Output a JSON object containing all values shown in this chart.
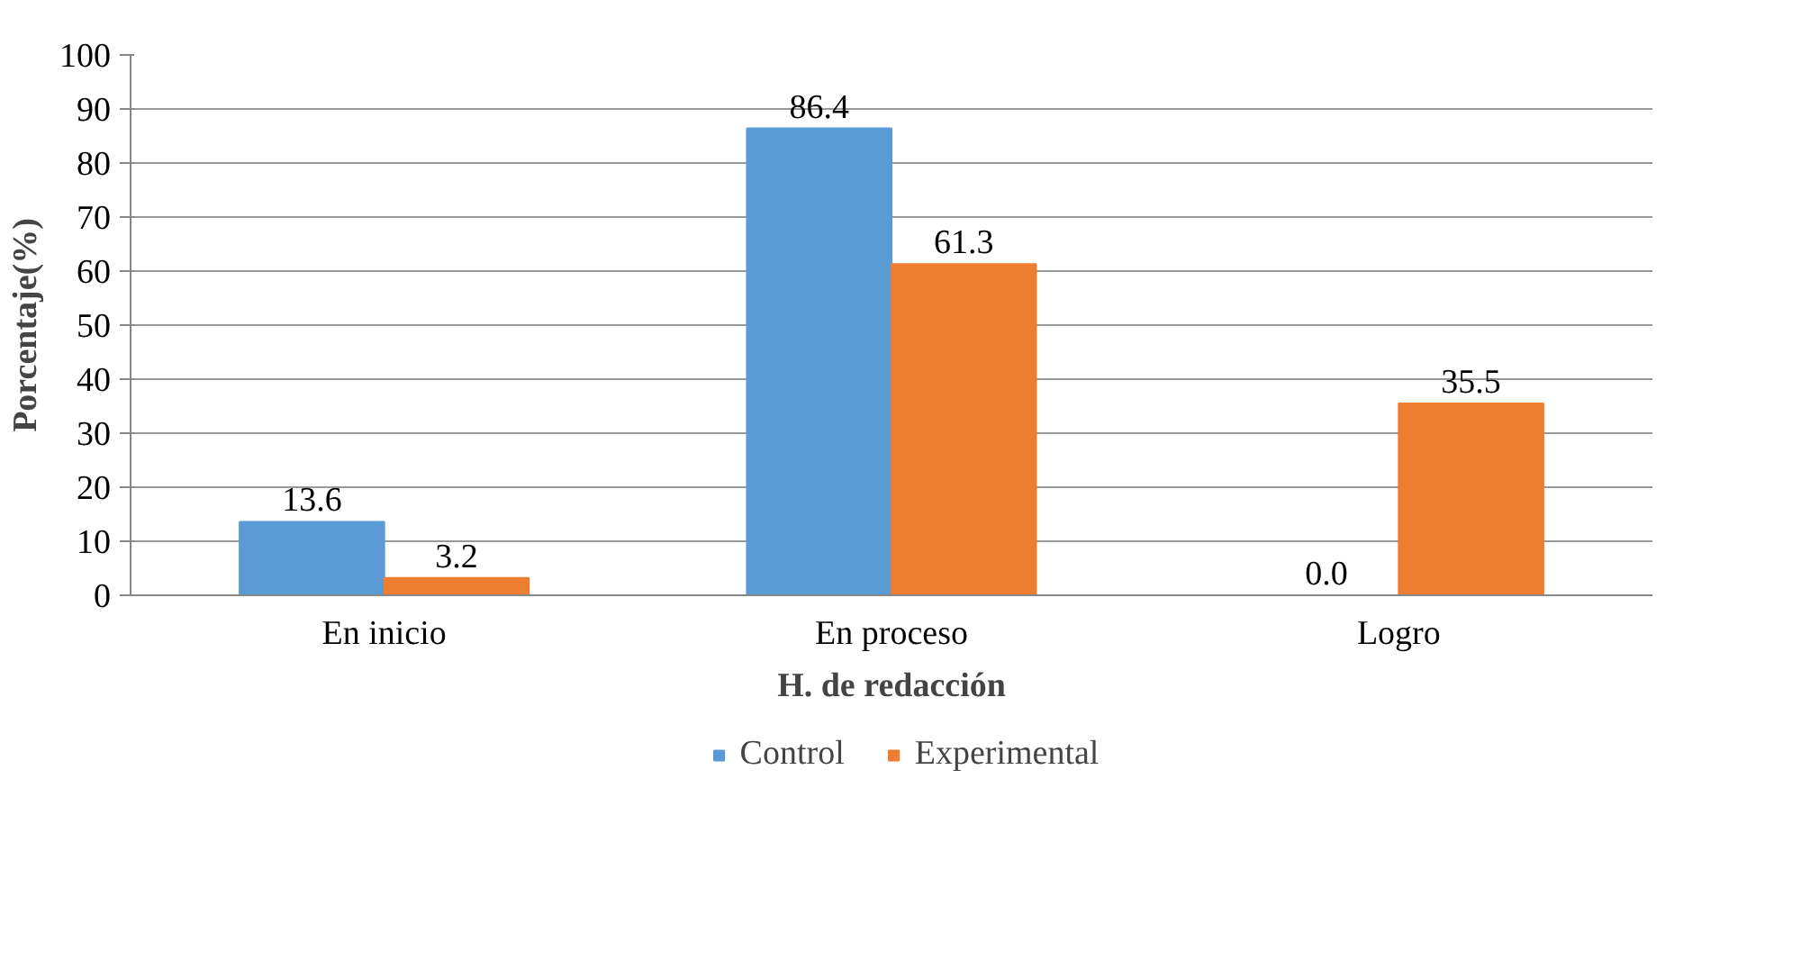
{
  "chart_data": {
    "type": "bar",
    "xlabel": "H. de redacción",
    "ylabel": "Porcentaje(%)",
    "categories": [
      "En inicio",
      "En proceso",
      "Logro"
    ],
    "series": [
      {
        "name": "Control",
        "color": "#5b9bd5",
        "values": [
          13.6,
          86.4,
          0.0
        ],
        "value_labels": [
          "13.6",
          "86.4",
          "0.0"
        ]
      },
      {
        "name": "Experimental",
        "color": "#ed7d31",
        "values": [
          3.2,
          61.3,
          35.5
        ],
        "value_labels": [
          "3.2",
          "61.3",
          "35.5"
        ]
      }
    ],
    "ylim": [
      0,
      100
    ],
    "yticks": [
      0,
      10,
      20,
      30,
      40,
      50,
      60,
      70,
      80,
      90,
      100
    ],
    "grid": "y",
    "legend": "bottom"
  }
}
